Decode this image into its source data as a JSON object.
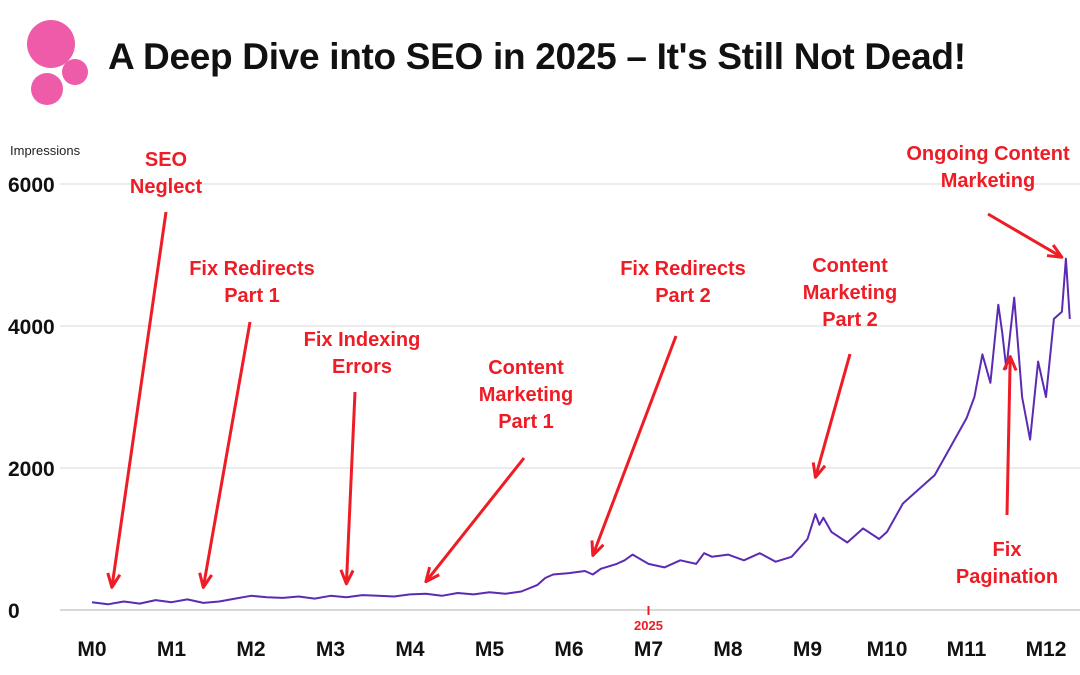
{
  "header": {
    "title": "A Deep Dive into SEO in 2025 – It's Still Not Dead!",
    "logo_icon": "pink-circles-logo-icon",
    "logo_color": "#ee5ba8"
  },
  "chart_data": {
    "type": "line",
    "title": "A Deep Dive into SEO in 2025 – It's Still Not Dead!",
    "ylabel": "Impressions",
    "xlabel": "",
    "categories": [
      "M0",
      "M1",
      "M2",
      "M3",
      "M4",
      "M5",
      "M6",
      "M7",
      "M8",
      "M9",
      "M10",
      "M11",
      "M12"
    ],
    "x_marker": {
      "label": "2025",
      "x": 7
    },
    "ylim": [
      0,
      6000
    ],
    "xlim": [
      0,
      12.3
    ],
    "yticks": [
      0,
      2000,
      4000,
      6000
    ],
    "grid": true,
    "line_color": "#5b2bb3",
    "annotation_color": "#ee1c25",
    "series": [
      {
        "name": "Impressions",
        "x": [
          0,
          0.2,
          0.4,
          0.6,
          0.8,
          1.0,
          1.2,
          1.4,
          1.6,
          1.8,
          2.0,
          2.2,
          2.4,
          2.6,
          2.8,
          3.0,
          3.2,
          3.4,
          3.6,
          3.8,
          4.0,
          4.2,
          4.4,
          4.6,
          4.8,
          5.0,
          5.2,
          5.4,
          5.6,
          5.7,
          5.8,
          6.0,
          6.2,
          6.3,
          6.4,
          6.6,
          6.7,
          6.8,
          7.0,
          7.2,
          7.4,
          7.6,
          7.7,
          7.8,
          8.0,
          8.2,
          8.4,
          8.6,
          8.8,
          9.0,
          9.1,
          9.15,
          9.2,
          9.3,
          9.5,
          9.7,
          9.9,
          10.0,
          10.2,
          10.4,
          10.6,
          10.8,
          11.0,
          11.1,
          11.2,
          11.3,
          11.4,
          11.45,
          11.5,
          11.6,
          11.65,
          11.7,
          11.8,
          11.9,
          12.0,
          12.1,
          12.2,
          12.25,
          12.3
        ],
        "values": [
          110,
          80,
          120,
          90,
          140,
          110,
          150,
          100,
          120,
          160,
          200,
          180,
          170,
          190,
          160,
          200,
          180,
          210,
          200,
          190,
          220,
          230,
          200,
          240,
          220,
          250,
          230,
          260,
          350,
          450,
          500,
          520,
          550,
          500,
          580,
          650,
          700,
          780,
          650,
          600,
          700,
          650,
          800,
          750,
          780,
          700,
          800,
          680,
          750,
          1000,
          1350,
          1200,
          1300,
          1100,
          950,
          1150,
          1000,
          1100,
          1500,
          1700,
          1900,
          2300,
          2700,
          3000,
          3600,
          3200,
          4300,
          3900,
          3400,
          4400,
          3700,
          3000,
          2400,
          3500,
          3000,
          4100,
          4200,
          4950,
          4100
        ]
      }
    ],
    "annotations": [
      {
        "text": [
          "SEO",
          "Neglect"
        ],
        "x": 0.25,
        "y": 150
      },
      {
        "text": [
          "Fix Redirects",
          "Part 1"
        ],
        "x": 1.4,
        "y": 150
      },
      {
        "text": [
          "Fix Indexing",
          "Errors"
        ],
        "x": 3.2,
        "y": 200
      },
      {
        "text": [
          "Content",
          "Marketing",
          "Part 1"
        ],
        "x": 4.2,
        "y": 230
      },
      {
        "text": [
          "Fix Redirects",
          "Part 2"
        ],
        "x": 6.3,
        "y": 600
      },
      {
        "text": [
          "Content",
          "Marketing",
          "Part 2"
        ],
        "x": 9.1,
        "y": 1700
      },
      {
        "text": [
          "Ongoing Content",
          "Marketing"
        ],
        "x": 12.2,
        "y": 4800
      },
      {
        "text": [
          "Fix",
          "Pagination"
        ],
        "x": 11.55,
        "y": 3400
      }
    ]
  }
}
